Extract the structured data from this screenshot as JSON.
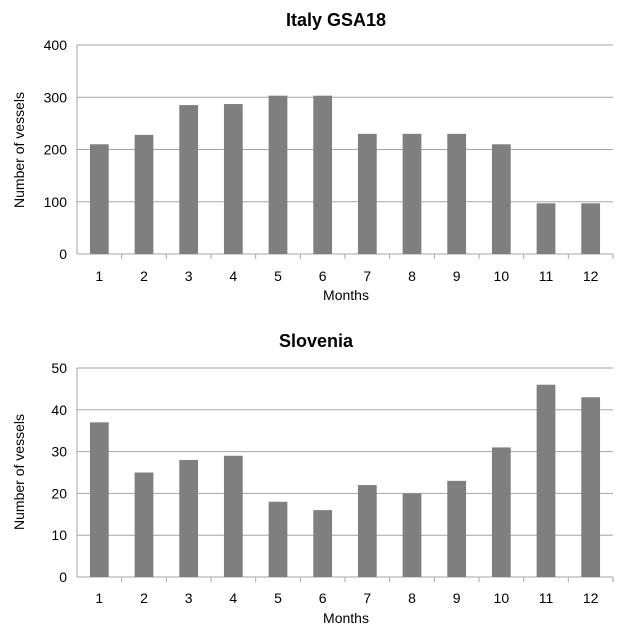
{
  "chart_data": [
    {
      "type": "bar",
      "title": "Italy GSA18",
      "xlabel": "Months",
      "ylabel": "Number of vessels",
      "categories": [
        "1",
        "2",
        "3",
        "4",
        "5",
        "6",
        "7",
        "8",
        "9",
        "10",
        "11",
        "12"
      ],
      "values": [
        210,
        228,
        285,
        287,
        303,
        303,
        230,
        230,
        230,
        210,
        97,
        97
      ],
      "ylim": [
        0,
        400
      ],
      "yticks": [
        0,
        100,
        200,
        300,
        400
      ],
      "grid": true,
      "legend": "none",
      "bar_color": "#7f7f7f"
    },
    {
      "type": "bar",
      "title": "Slovenia",
      "xlabel": "Months",
      "ylabel": "Number of vessels",
      "categories": [
        "1",
        "2",
        "3",
        "4",
        "5",
        "6",
        "7",
        "8",
        "9",
        "10",
        "11",
        "12"
      ],
      "values": [
        37,
        25,
        28,
        29,
        18,
        16,
        22,
        20,
        23,
        31,
        46,
        43
      ],
      "ylim": [
        0,
        50
      ],
      "yticks": [
        0,
        10,
        20,
        30,
        40,
        50
      ],
      "grid": true,
      "legend": "none",
      "bar_color": "#7f7f7f"
    }
  ]
}
